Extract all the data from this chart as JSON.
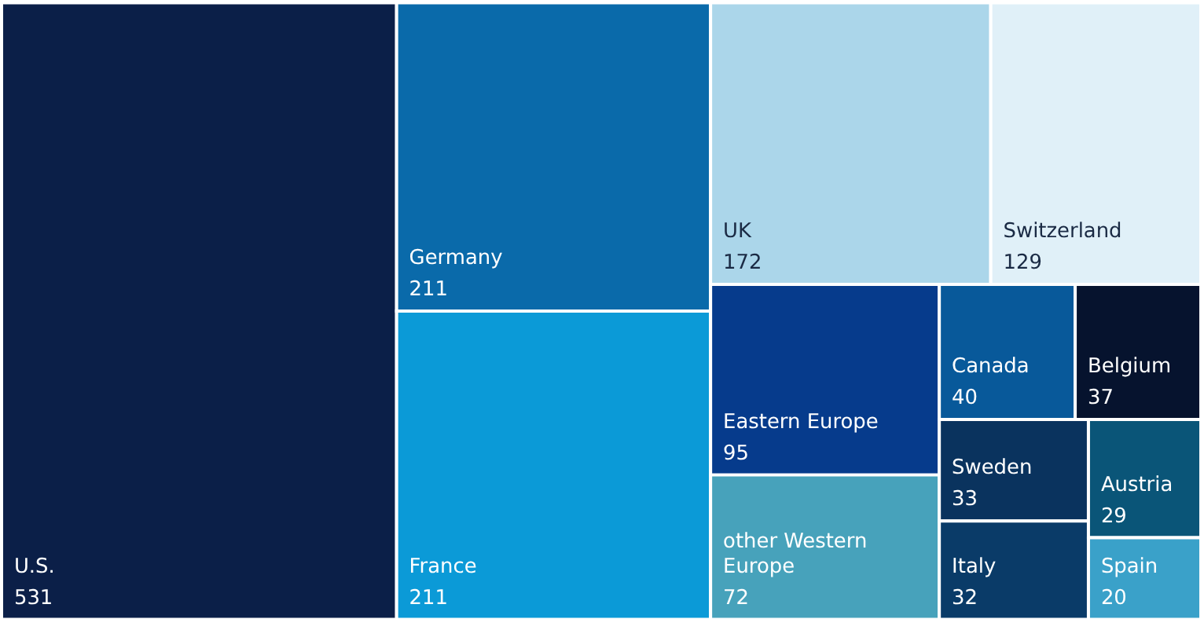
{
  "chart_data": {
    "type": "other",
    "categories": [
      "U.S.",
      "Germany",
      "France",
      "UK",
      "Switzerland",
      "Eastern Europe",
      "other Western Europe",
      "Canada",
      "Belgium",
      "Sweden",
      "Italy",
      "Austria",
      "Spain"
    ],
    "values": [
      531,
      211,
      211,
      172,
      129,
      95,
      72,
      40,
      37,
      33,
      32,
      29,
      20
    ],
    "colors": [
      "#0b1f48",
      "#0a6aaa",
      "#0b9ad7",
      "#abd6ea",
      "#e0f0f8",
      "#063b8c",
      "#47a2bb",
      "#08599a",
      "#06132e",
      "#0a335e",
      "#0a3b68",
      "#0a5578",
      "#3aa1c9"
    ],
    "data_labels": true
  }
}
